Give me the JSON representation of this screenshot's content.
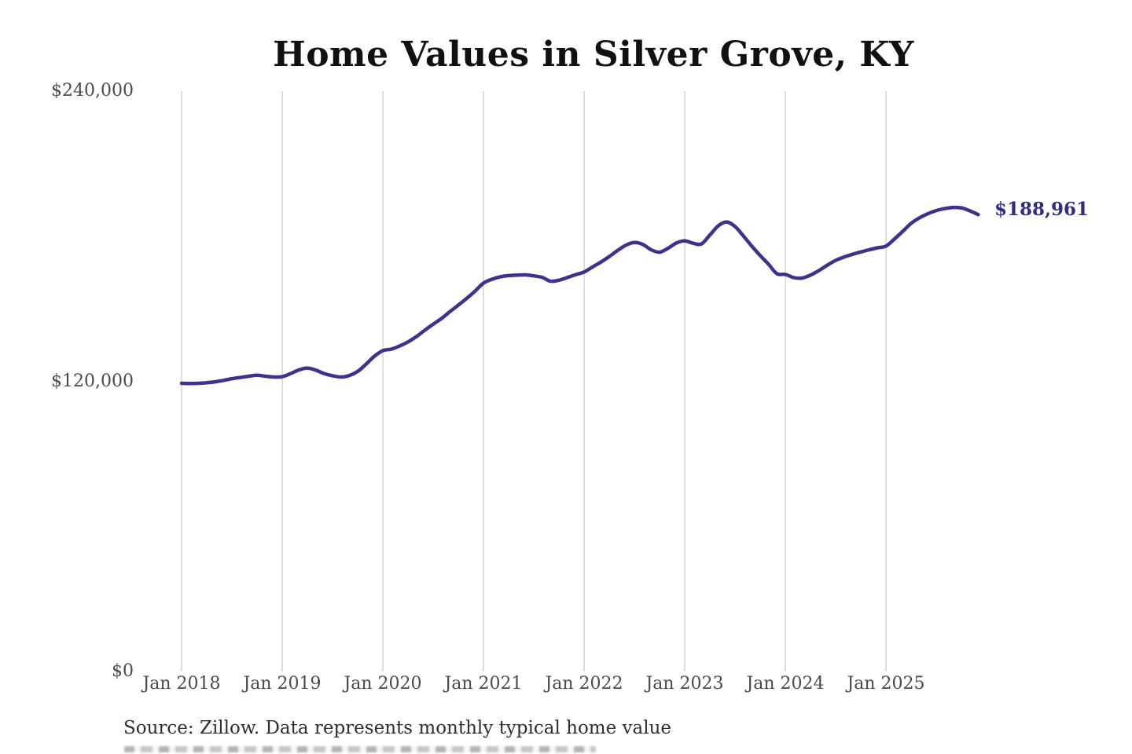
{
  "chart": {
    "title": "Home Values in Silver Grove, KY",
    "annotation": {
      "text": "$188,961",
      "value": 188961
    },
    "source_note": "Source: Zillow. Data represents monthly typical home value"
  },
  "colors": {
    "line": "#3b338e",
    "annotation": "#312d87",
    "grid": "#cccccc",
    "axis_text": "#4a4a4a",
    "title_text": "#111111",
    "source_text": "#2e2e2e",
    "background": "#ffffff"
  },
  "chart_data": {
    "type": "line",
    "title": "Home Values in Silver Grove, KY",
    "xlabel": "",
    "ylabel": "",
    "ylim": [
      0,
      240000
    ],
    "grid": "vertical-only",
    "legend": "none",
    "cadence": "monthly",
    "x_start": "Jan 2018",
    "x_end": "Dec 2025",
    "y_ticks": [
      {
        "value": 240000,
        "label": "$240,000"
      },
      {
        "value": 120000,
        "label": "$120,000"
      },
      {
        "value": 0,
        "label": "$0"
      }
    ],
    "x_ticks": [
      {
        "month_index": 0,
        "label": "Jan 2018"
      },
      {
        "month_index": 12,
        "label": "Jan 2019"
      },
      {
        "month_index": 24,
        "label": "Jan 2020"
      },
      {
        "month_index": 36,
        "label": "Jan 2021"
      },
      {
        "month_index": 48,
        "label": "Jan 2022"
      },
      {
        "month_index": 60,
        "label": "Jan 2023"
      },
      {
        "month_index": 72,
        "label": "Jan 2024"
      },
      {
        "month_index": 84,
        "label": "Jan 2025"
      }
    ],
    "latest_value": 188961,
    "series": [
      {
        "name": "Monthly typical home value",
        "values": [
          119200,
          119100,
          119200,
          119400,
          119800,
          120400,
          121100,
          121600,
          122100,
          122500,
          122100,
          121800,
          121900,
          123200,
          124700,
          125500,
          124600,
          123200,
          122300,
          121800,
          122400,
          124100,
          127100,
          130400,
          132700,
          133300,
          134600,
          136300,
          138500,
          141100,
          143600,
          146000,
          148800,
          151500,
          154300,
          157300,
          160600,
          162200,
          163200,
          163700,
          163900,
          164000,
          163600,
          163000,
          161400,
          161800,
          162900,
          164100,
          165200,
          167300,
          169300,
          171600,
          174100,
          176300,
          177400,
          176600,
          174400,
          173400,
          175000,
          177200,
          178100,
          177100,
          176800,
          180500,
          184300,
          185900,
          184000,
          180100,
          175900,
          172000,
          168400,
          164500,
          164200,
          162900,
          162700,
          163900,
          165800,
          168000,
          170000,
          171400,
          172500,
          173500,
          174400,
          175200,
          175900,
          178800,
          182000,
          185300,
          187600,
          189300,
          190600,
          191400,
          191900,
          191700,
          190500,
          188961
        ]
      }
    ]
  }
}
